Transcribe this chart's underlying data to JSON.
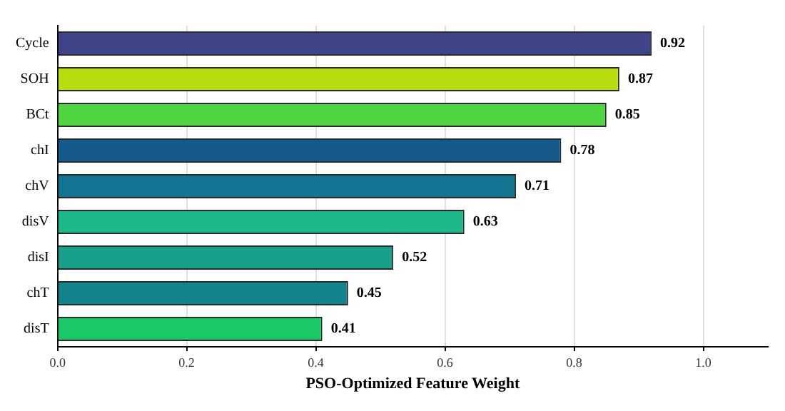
{
  "chart_data": {
    "type": "bar",
    "orientation": "horizontal",
    "xlabel": "PSO-Optimized Feature Weight",
    "categories": [
      "Cycle",
      "SOH",
      "BCt",
      "chI",
      "chV",
      "disV",
      "disI",
      "chT",
      "disT"
    ],
    "values": [
      0.92,
      0.87,
      0.85,
      0.78,
      0.71,
      0.63,
      0.52,
      0.45,
      0.41
    ],
    "colors": [
      "#3f4489",
      "#b5de0c",
      "#4fd53f",
      "#145a8d",
      "#117490",
      "#1db88a",
      "#18a18a",
      "#13838d",
      "#1bc866"
    ],
    "xlim": [
      0,
      1.1
    ],
    "xticks": [
      {
        "value": 0,
        "label": "0.0"
      },
      0.2,
      0.4,
      0.6,
      0.8,
      {
        "value": 1,
        "label": "1.0"
      }
    ],
    "data_labels": true,
    "grid": "x",
    "legend": false
  }
}
